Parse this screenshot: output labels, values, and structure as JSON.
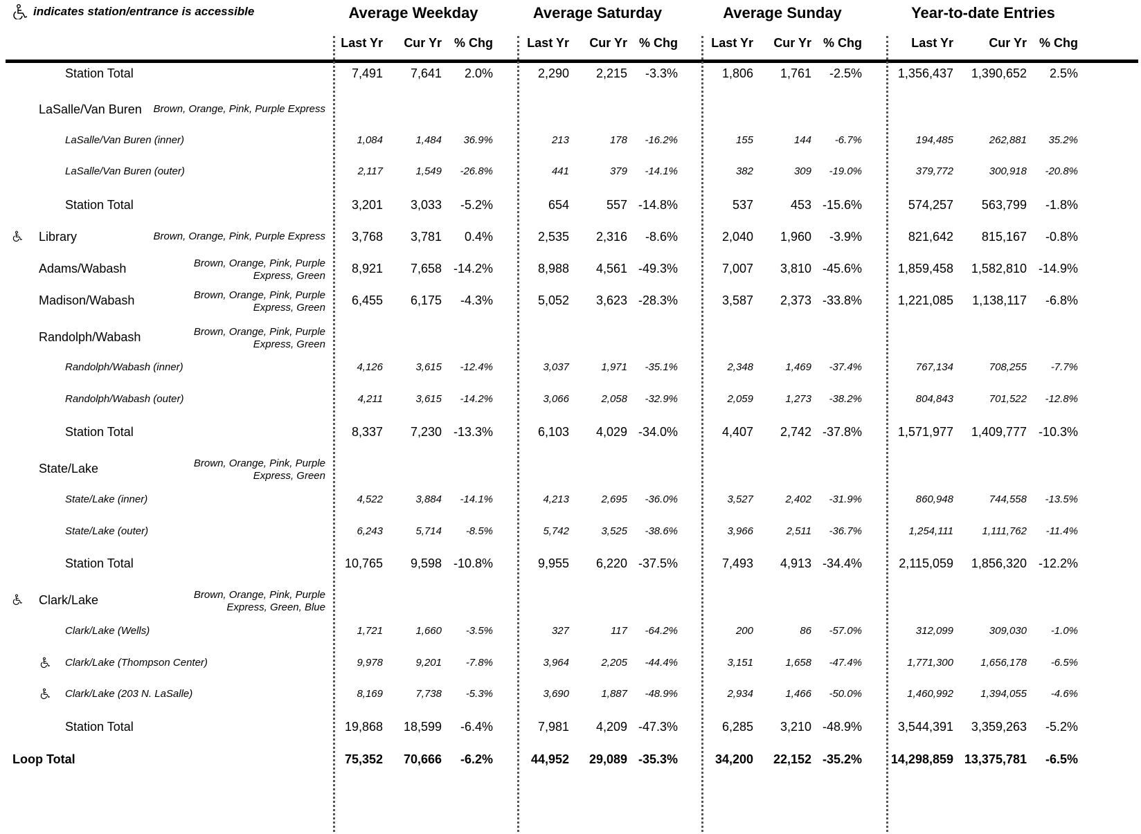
{
  "legend": {
    "text": "indicates station/entrance is accessible"
  },
  "groups": [
    "Average Weekday",
    "Average Saturday",
    "Average Sunday",
    "Year-to-date Entries"
  ],
  "col_headers": [
    "Last Yr",
    "Cur Yr",
    "% Chg",
    "Last Yr",
    "Cur Yr",
    "% Chg",
    "Last Yr",
    "Cur Yr",
    "% Chg",
    "Last Yr",
    "Cur Yr",
    "% Chg"
  ],
  "rows": [
    {
      "kind": "total",
      "label": "Station Total",
      "vals": [
        "7,491",
        "7,641",
        "2.0%",
        "2,290",
        "2,215",
        "-3.3%",
        "1,806",
        "1,761",
        "-2.5%",
        "1,356,437",
        "1,390,652",
        "2.5%"
      ]
    },
    {
      "kind": "station",
      "label": "LaSalle/Van Buren",
      "lines": "Brown, Orange, Pink, Purple Express"
    },
    {
      "kind": "sub",
      "label": "LaSalle/Van Buren (inner)",
      "vals": [
        "1,084",
        "1,484",
        "36.9%",
        "213",
        "178",
        "-16.2%",
        "155",
        "144",
        "-6.7%",
        "194,485",
        "262,881",
        "35.2%"
      ]
    },
    {
      "kind": "sub",
      "label": "LaSalle/Van Buren (outer)",
      "vals": [
        "2,117",
        "1,549",
        "-26.8%",
        "441",
        "379",
        "-14.1%",
        "382",
        "309",
        "-19.0%",
        "379,772",
        "300,918",
        "-20.8%"
      ]
    },
    {
      "kind": "total",
      "label": "Station Total",
      "vals": [
        "3,201",
        "3,033",
        "-5.2%",
        "654",
        "557",
        "-14.8%",
        "537",
        "453",
        "-15.6%",
        "574,257",
        "563,799",
        "-1.8%"
      ]
    },
    {
      "kind": "station",
      "label": "Library",
      "accessible": true,
      "lines": "Brown, Orange, Pink, Purple Express",
      "vals": [
        "3,768",
        "3,781",
        "0.4%",
        "2,535",
        "2,316",
        "-8.6%",
        "2,040",
        "1,960",
        "-3.9%",
        "821,642",
        "815,167",
        "-0.8%"
      ]
    },
    {
      "kind": "station",
      "label": "Adams/Wabash",
      "lines": "Brown, Orange, Pink, Purple Express, Green",
      "vals": [
        "8,921",
        "7,658",
        "-14.2%",
        "8,988",
        "4,561",
        "-49.3%",
        "7,007",
        "3,810",
        "-45.6%",
        "1,859,458",
        "1,582,810",
        "-14.9%"
      ]
    },
    {
      "kind": "station",
      "label": "Madison/Wabash",
      "lines": "Brown, Orange, Pink, Purple Express, Green",
      "vals": [
        "6,455",
        "6,175",
        "-4.3%",
        "5,052",
        "3,623",
        "-28.3%",
        "3,587",
        "2,373",
        "-33.8%",
        "1,221,085",
        "1,138,117",
        "-6.8%"
      ]
    },
    {
      "kind": "station",
      "label": "Randolph/Wabash",
      "lines": "Brown, Orange, Pink, Purple Express, Green"
    },
    {
      "kind": "sub",
      "label": "Randolph/Wabash (inner)",
      "vals": [
        "4,126",
        "3,615",
        "-12.4%",
        "3,037",
        "1,971",
        "-35.1%",
        "2,348",
        "1,469",
        "-37.4%",
        "767,134",
        "708,255",
        "-7.7%"
      ]
    },
    {
      "kind": "sub",
      "label": "Randolph/Wabash (outer)",
      "vals": [
        "4,211",
        "3,615",
        "-14.2%",
        "3,066",
        "2,058",
        "-32.9%",
        "2,059",
        "1,273",
        "-38.2%",
        "804,843",
        "701,522",
        "-12.8%"
      ]
    },
    {
      "kind": "total",
      "label": "Station Total",
      "vals": [
        "8,337",
        "7,230",
        "-13.3%",
        "6,103",
        "4,029",
        "-34.0%",
        "4,407",
        "2,742",
        "-37.8%",
        "1,571,977",
        "1,409,777",
        "-10.3%"
      ]
    },
    {
      "kind": "station",
      "label": "State/Lake",
      "lines": "Brown, Orange, Pink, Purple Express, Green"
    },
    {
      "kind": "sub",
      "label": "State/Lake (inner)",
      "vals": [
        "4,522",
        "3,884",
        "-14.1%",
        "4,213",
        "2,695",
        "-36.0%",
        "3,527",
        "2,402",
        "-31.9%",
        "860,948",
        "744,558",
        "-13.5%"
      ]
    },
    {
      "kind": "sub",
      "label": "State/Lake (outer)",
      "vals": [
        "6,243",
        "5,714",
        "-8.5%",
        "5,742",
        "3,525",
        "-38.6%",
        "3,966",
        "2,511",
        "-36.7%",
        "1,254,111",
        "1,111,762",
        "-11.4%"
      ]
    },
    {
      "kind": "total",
      "label": "Station Total",
      "vals": [
        "10,765",
        "9,598",
        "-10.8%",
        "9,955",
        "6,220",
        "-37.5%",
        "7,493",
        "4,913",
        "-34.4%",
        "2,115,059",
        "1,856,320",
        "-12.2%"
      ]
    },
    {
      "kind": "station",
      "label": "Clark/Lake",
      "accessible": true,
      "lines": "Brown, Orange, Pink, Purple Express, Green, Blue"
    },
    {
      "kind": "sub",
      "label": "Clark/Lake (Wells)",
      "vals": [
        "1,721",
        "1,660",
        "-3.5%",
        "327",
        "117",
        "-64.2%",
        "200",
        "86",
        "-57.0%",
        "312,099",
        "309,030",
        "-1.0%"
      ]
    },
    {
      "kind": "sub",
      "label": "Clark/Lake (Thompson Center)",
      "accessible": true,
      "vals": [
        "9,978",
        "9,201",
        "-7.8%",
        "3,964",
        "2,205",
        "-44.4%",
        "3,151",
        "1,658",
        "-47.4%",
        "1,771,300",
        "1,656,178",
        "-6.5%"
      ]
    },
    {
      "kind": "sub",
      "label": "Clark/Lake (203 N. LaSalle)",
      "accessible": true,
      "vals": [
        "8,169",
        "7,738",
        "-5.3%",
        "3,690",
        "1,887",
        "-48.9%",
        "2,934",
        "1,466",
        "-50.0%",
        "1,460,992",
        "1,394,055",
        "-4.6%"
      ]
    },
    {
      "kind": "total",
      "label": "Station Total",
      "vals": [
        "19,868",
        "18,599",
        "-6.4%",
        "7,981",
        "4,209",
        "-47.3%",
        "6,285",
        "3,210",
        "-48.9%",
        "3,544,391",
        "3,359,263",
        "-5.2%"
      ]
    },
    {
      "kind": "loop",
      "label": "Loop Total",
      "vals": [
        "75,352",
        "70,666",
        "-6.2%",
        "44,952",
        "29,089",
        "-35.3%",
        "34,200",
        "22,152",
        "-35.2%",
        "14,298,859",
        "13,375,781",
        "-6.5%"
      ]
    }
  ]
}
